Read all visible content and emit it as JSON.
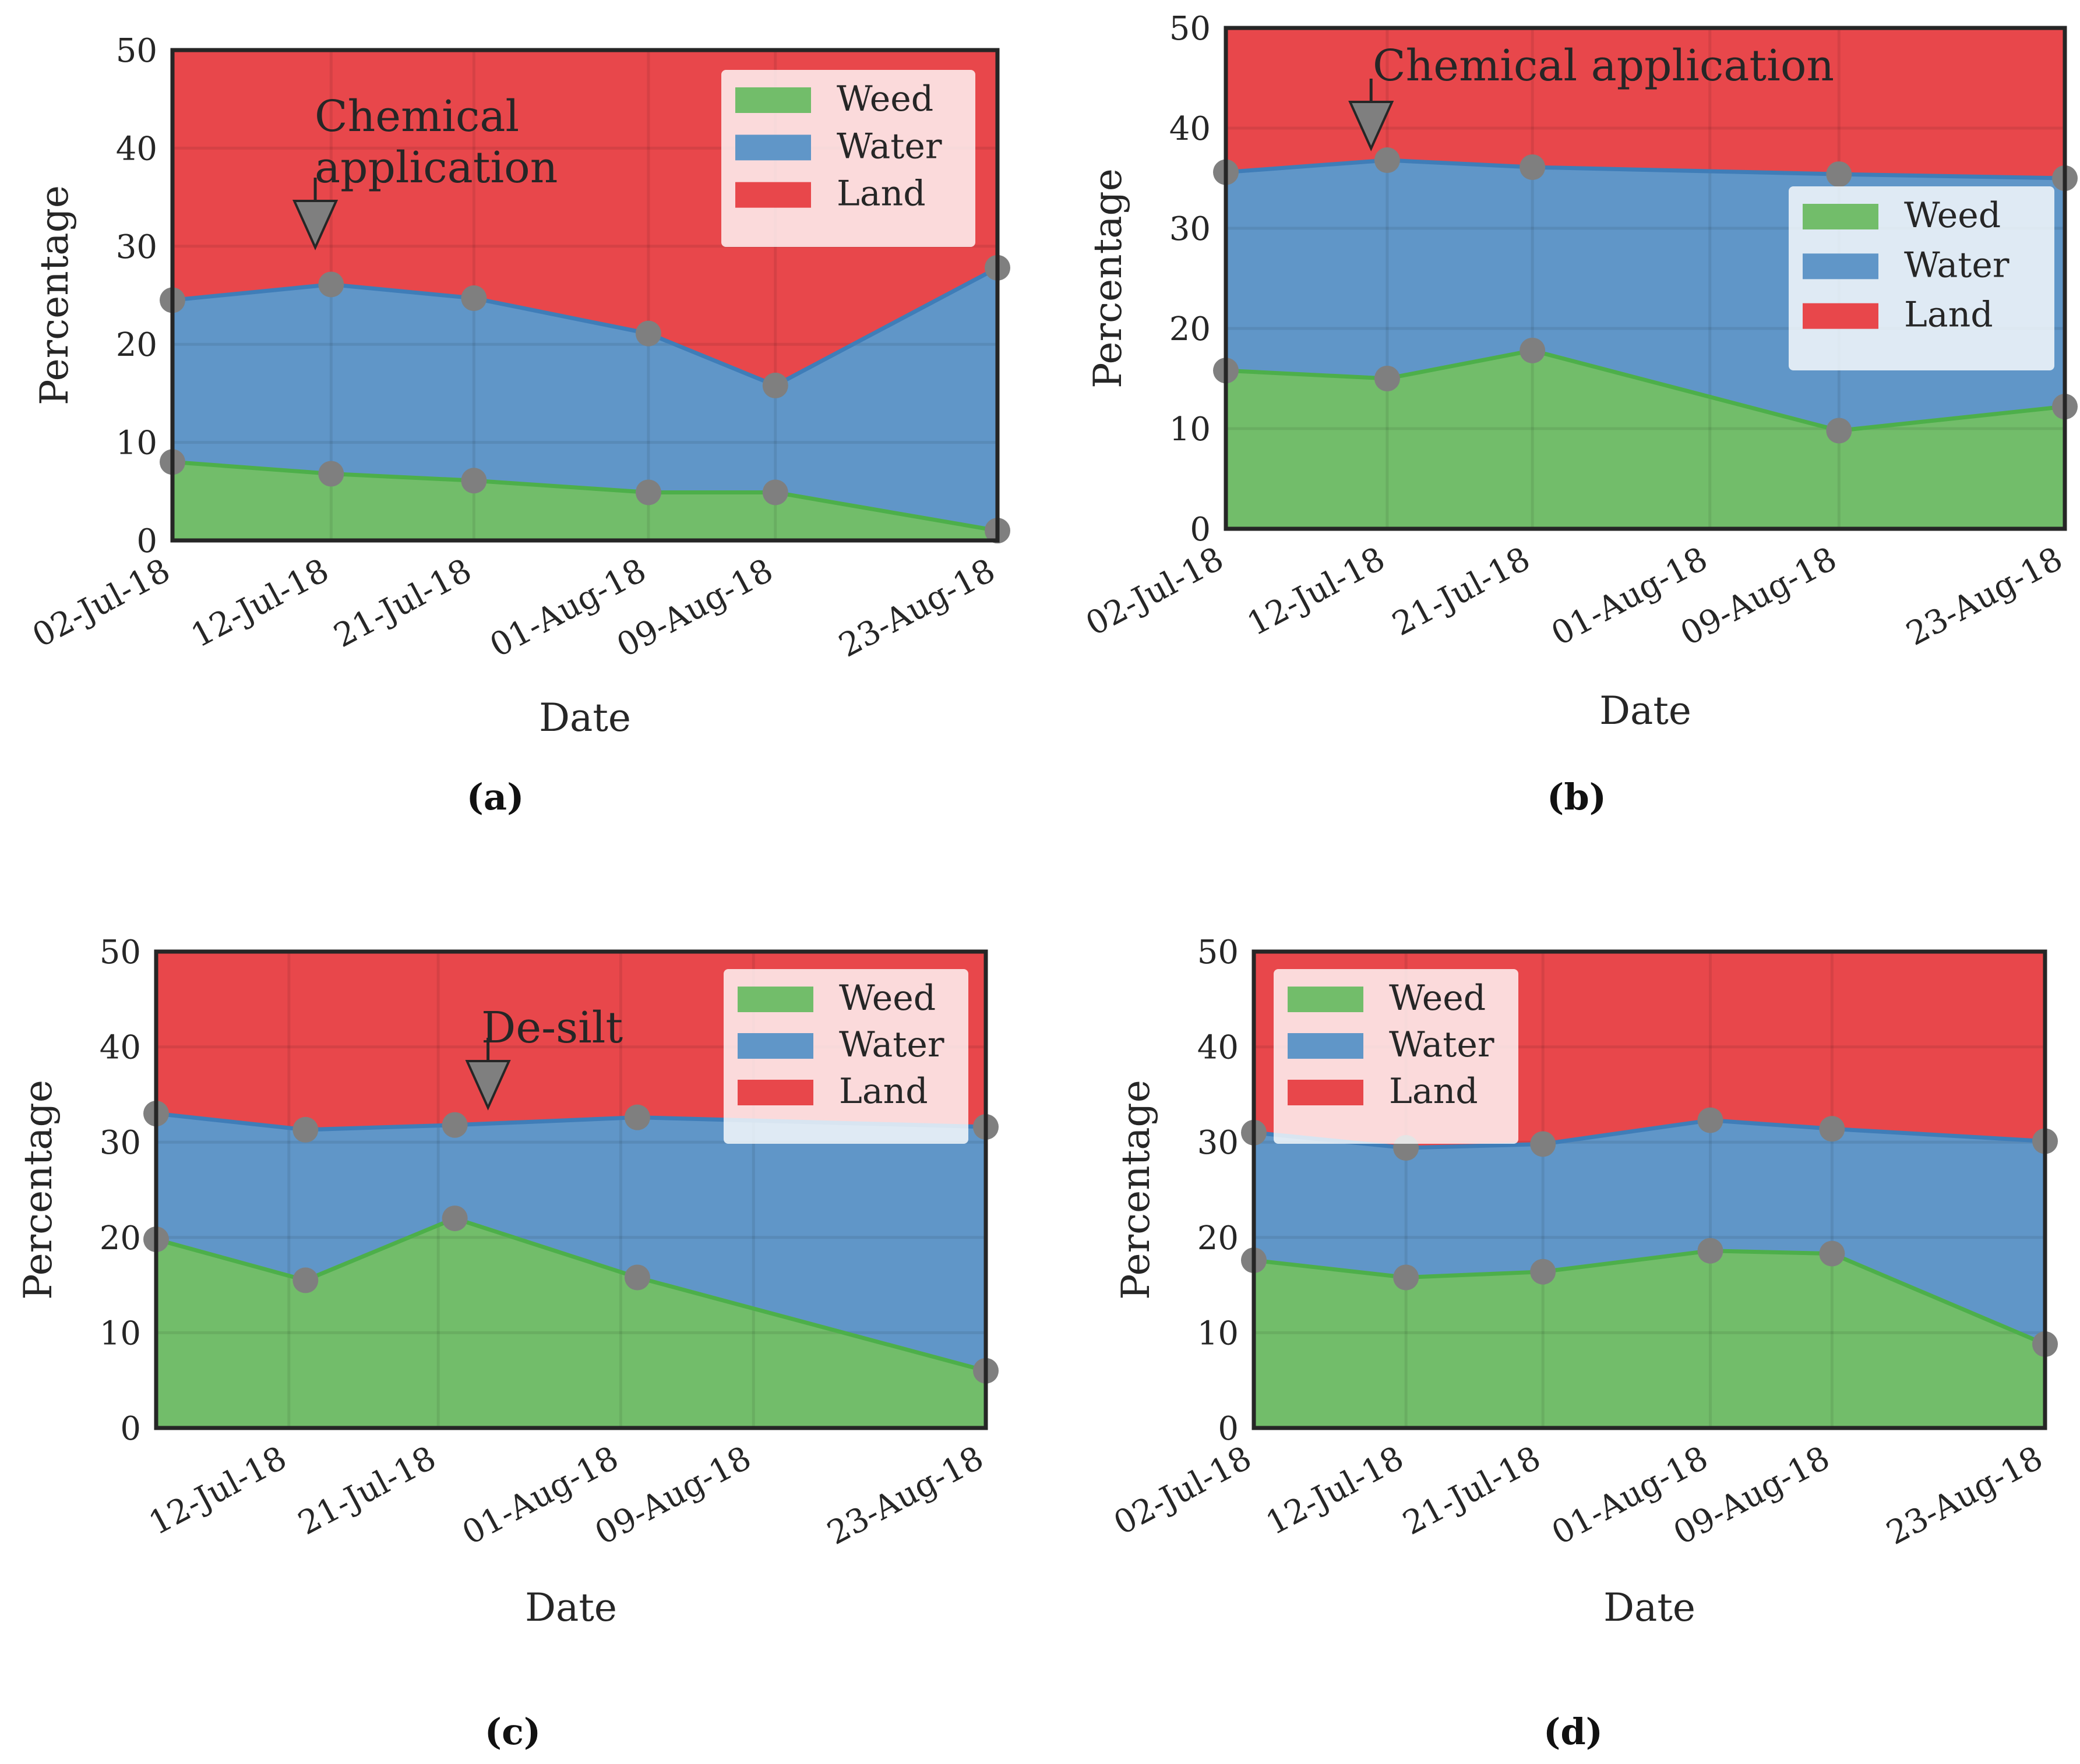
{
  "colors": {
    "weed": "#72bd6a",
    "weed_line": "#4daf4a",
    "water": "#6096c8",
    "water_line": "#3f7db8",
    "land": "#e8474b",
    "marker": "#7f7f7f",
    "grid": "#c0392b"
  },
  "chart_data": [
    {
      "id": "a",
      "type": "area",
      "stacked": true,
      "caption": "(a)",
      "xlabel": "Date",
      "ylabel": "Percentage",
      "ylim": [
        0,
        50
      ],
      "yticks": [
        "0",
        "10",
        "20",
        "30",
        "40",
        "50"
      ],
      "xlim": [
        0,
        52
      ],
      "xticks": [
        {
          "day": 0,
          "label": "02-Jul-18"
        },
        {
          "day": 10,
          "label": "12-Jul-18"
        },
        {
          "day": 19,
          "label": "21-Jul-18"
        },
        {
          "day": 30,
          "label": "01-Aug-18"
        },
        {
          "day": 38,
          "label": "09-Aug-18"
        },
        {
          "day": 52,
          "label": "23-Aug-18"
        }
      ],
      "x": [
        0,
        10,
        19,
        30,
        38,
        52
      ],
      "series": [
        {
          "name": "Weed",
          "values": [
            8.0,
            6.8,
            6.1,
            4.9,
            4.9,
            1.0
          ]
        },
        {
          "name": "Water",
          "values": [
            24.5,
            26.1,
            24.7,
            21.1,
            15.8,
            27.8
          ]
        },
        {
          "name": "Land",
          "values": [
            50,
            50,
            50,
            50,
            50,
            50
          ]
        }
      ],
      "legend": [
        "Weed",
        "Water",
        "Land"
      ],
      "legend_position": "top-right",
      "annotation": {
        "lines": [
          "Chemical",
          "application"
        ],
        "day": 9
      }
    },
    {
      "id": "b",
      "type": "area",
      "stacked": true,
      "caption": "(b)",
      "xlabel": "Date",
      "ylabel": "Percentage",
      "ylim": [
        0,
        50
      ],
      "yticks": [
        "0",
        "10",
        "20",
        "30",
        "40",
        "50"
      ],
      "xlim": [
        0,
        52
      ],
      "xticks": [
        {
          "day": 0,
          "label": "02-Jul-18"
        },
        {
          "day": 10,
          "label": "12-Jul-18"
        },
        {
          "day": 19,
          "label": "21-Jul-18"
        },
        {
          "day": 30,
          "label": "01-Aug-18"
        },
        {
          "day": 38,
          "label": "09-Aug-18"
        },
        {
          "day": 52,
          "label": "23-Aug-18"
        }
      ],
      "x": [
        0,
        10,
        19,
        38,
        52
      ],
      "series": [
        {
          "name": "Weed",
          "values": [
            15.8,
            15.0,
            17.8,
            9.8,
            12.2
          ]
        },
        {
          "name": "Water",
          "values": [
            35.6,
            36.8,
            36.1,
            35.4,
            35.0
          ]
        },
        {
          "name": "Land",
          "values": [
            50,
            50,
            50,
            50,
            50
          ]
        }
      ],
      "legend": [
        "Weed",
        "Water",
        "Land"
      ],
      "legend_position": "center-right",
      "annotation": {
        "lines": [
          "Chemical application"
        ],
        "day": 9
      }
    },
    {
      "id": "c",
      "type": "area",
      "stacked": true,
      "caption": "(c)",
      "xlabel": "Date",
      "ylabel": "Percentage",
      "ylim": [
        0,
        50
      ],
      "yticks": [
        "0",
        "10",
        "20",
        "30",
        "40",
        "50"
      ],
      "xlim": [
        2,
        52
      ],
      "xticks": [
        {
          "day": 10,
          "label": "12-Jul-18"
        },
        {
          "day": 19,
          "label": "21-Jul-18"
        },
        {
          "day": 30,
          "label": "01-Aug-18"
        },
        {
          "day": 38,
          "label": "09-Aug-18"
        },
        {
          "day": 52,
          "label": "23-Aug-18"
        }
      ],
      "x": [
        2,
        11,
        20,
        31,
        52
      ],
      "series": [
        {
          "name": "Weed",
          "values": [
            19.8,
            15.5,
            22.0,
            15.8,
            6.0
          ]
        },
        {
          "name": "Water",
          "values": [
            33.0,
            31.3,
            31.8,
            32.6,
            31.6
          ]
        },
        {
          "name": "Land",
          "values": [
            50,
            50,
            50,
            50,
            50
          ]
        }
      ],
      "legend": [
        "Weed",
        "Water",
        "Land"
      ],
      "legend_position": "top-right",
      "annotation": {
        "lines": [
          "De-silt"
        ],
        "day": 22
      }
    },
    {
      "id": "d",
      "type": "area",
      "stacked": true,
      "caption": "(d)",
      "xlabel": "Date",
      "ylabel": "Percentage",
      "ylim": [
        0,
        50
      ],
      "yticks": [
        "0",
        "10",
        "20",
        "30",
        "40",
        "50"
      ],
      "xlim": [
        0,
        52
      ],
      "xticks": [
        {
          "day": 0,
          "label": "02-Jul-18"
        },
        {
          "day": 10,
          "label": "12-Jul-18"
        },
        {
          "day": 19,
          "label": "21-Jul-18"
        },
        {
          "day": 30,
          "label": "01-Aug-18"
        },
        {
          "day": 38,
          "label": "09-Aug-18"
        },
        {
          "day": 52,
          "label": "23-Aug-18"
        }
      ],
      "x": [
        0,
        10,
        19,
        30,
        38,
        52
      ],
      "series": [
        {
          "name": "Weed",
          "values": [
            17.6,
            15.8,
            16.4,
            18.6,
            18.3,
            8.8
          ]
        },
        {
          "name": "Water",
          "values": [
            31.0,
            29.4,
            29.8,
            32.3,
            31.4,
            30.1
          ]
        },
        {
          "name": "Land",
          "values": [
            50,
            50,
            50,
            50,
            50,
            50
          ]
        }
      ],
      "legend": [
        "Weed",
        "Water",
        "Land"
      ],
      "legend_position": "top-left",
      "annotation": null
    }
  ]
}
